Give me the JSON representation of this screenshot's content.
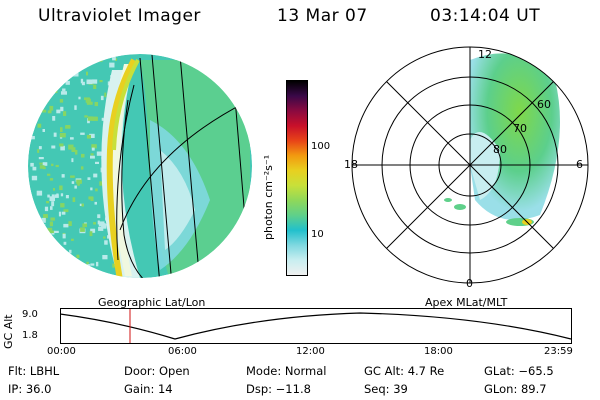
{
  "header": {
    "title": "Ultraviolet Imager",
    "date": "13 Mar 07",
    "time": "03:14:04 UT"
  },
  "colorbar": {
    "label": "photon cm⁻²s⁻¹",
    "ticks": [
      "100",
      "10"
    ],
    "colors": [
      "#f0f0f0",
      "#c8eef0",
      "#7fd8e0",
      "#22c0cc",
      "#5fd08a",
      "#8fd85a",
      "#c8e03a",
      "#e8d020",
      "#f29a10",
      "#e84418",
      "#c8102a",
      "#8a0a40",
      "#3a0848",
      "#000000"
    ]
  },
  "panels": {
    "left_label": "Geographic Lat/Lon",
    "right_label": "Apex MLat/MLT"
  },
  "polar": {
    "mlt_labels": [
      "12",
      "18",
      "6",
      "0"
    ],
    "lat_labels": [
      "60",
      "70",
      "80"
    ]
  },
  "orbit": {
    "axis_label": "GC Alt",
    "y_ticks": [
      "9.0",
      "1.8"
    ],
    "x_ticks": [
      "00:00",
      "06:00",
      "12:00",
      "18:00",
      "23:59"
    ],
    "marker_color": "#d01010"
  },
  "info": {
    "filter": "Flt: LBHL",
    "door": "Door: Open",
    "mode": "Mode: Normal",
    "gc_alt": "GC Alt: 4.7 Re",
    "glat": "GLat: −65.5",
    "ip": "IP: 36.0",
    "gain": "Gain: 14",
    "dsp": "Dsp:  −11.8",
    "seq": "Seq: 39",
    "glon": "GLon: 89.7"
  }
}
